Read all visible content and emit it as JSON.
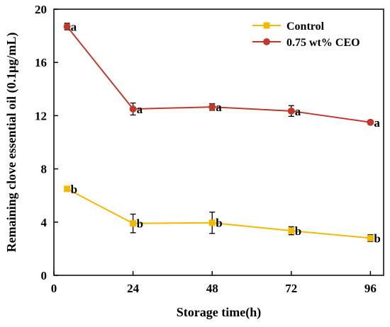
{
  "chart_data": {
    "type": "line",
    "xlabel": "Storage time(h)",
    "ylabel": "Remaining clove essential oil (0.1μg/mL)",
    "xlim": [
      0,
      100
    ],
    "ylim": [
      0,
      20
    ],
    "xticks": [
      0,
      24,
      48,
      72,
      96
    ],
    "yticks": [
      0,
      4,
      8,
      12,
      16,
      20
    ],
    "grid": false,
    "legend_position": "top-right",
    "series": [
      {
        "name": "Control",
        "color": "#F5B800",
        "marker": "square",
        "x": [
          4,
          24,
          48,
          72,
          96
        ],
        "y": [
          6.5,
          3.9,
          3.95,
          3.35,
          2.8
        ],
        "error": [
          0.15,
          0.7,
          0.8,
          0.3,
          0.25
        ],
        "labels": [
          "b",
          "b",
          "b",
          "b",
          "b"
        ]
      },
      {
        "name": "0.75 wt% CEO",
        "color": "#C0392B",
        "marker": "circle",
        "x": [
          4,
          24,
          48,
          72,
          96
        ],
        "y": [
          18.7,
          12.5,
          12.65,
          12.35,
          11.5
        ],
        "error": [
          0.25,
          0.45,
          0.25,
          0.4,
          0.15
        ],
        "labels": [
          "a",
          "a",
          "a",
          "a",
          "a"
        ]
      }
    ]
  }
}
